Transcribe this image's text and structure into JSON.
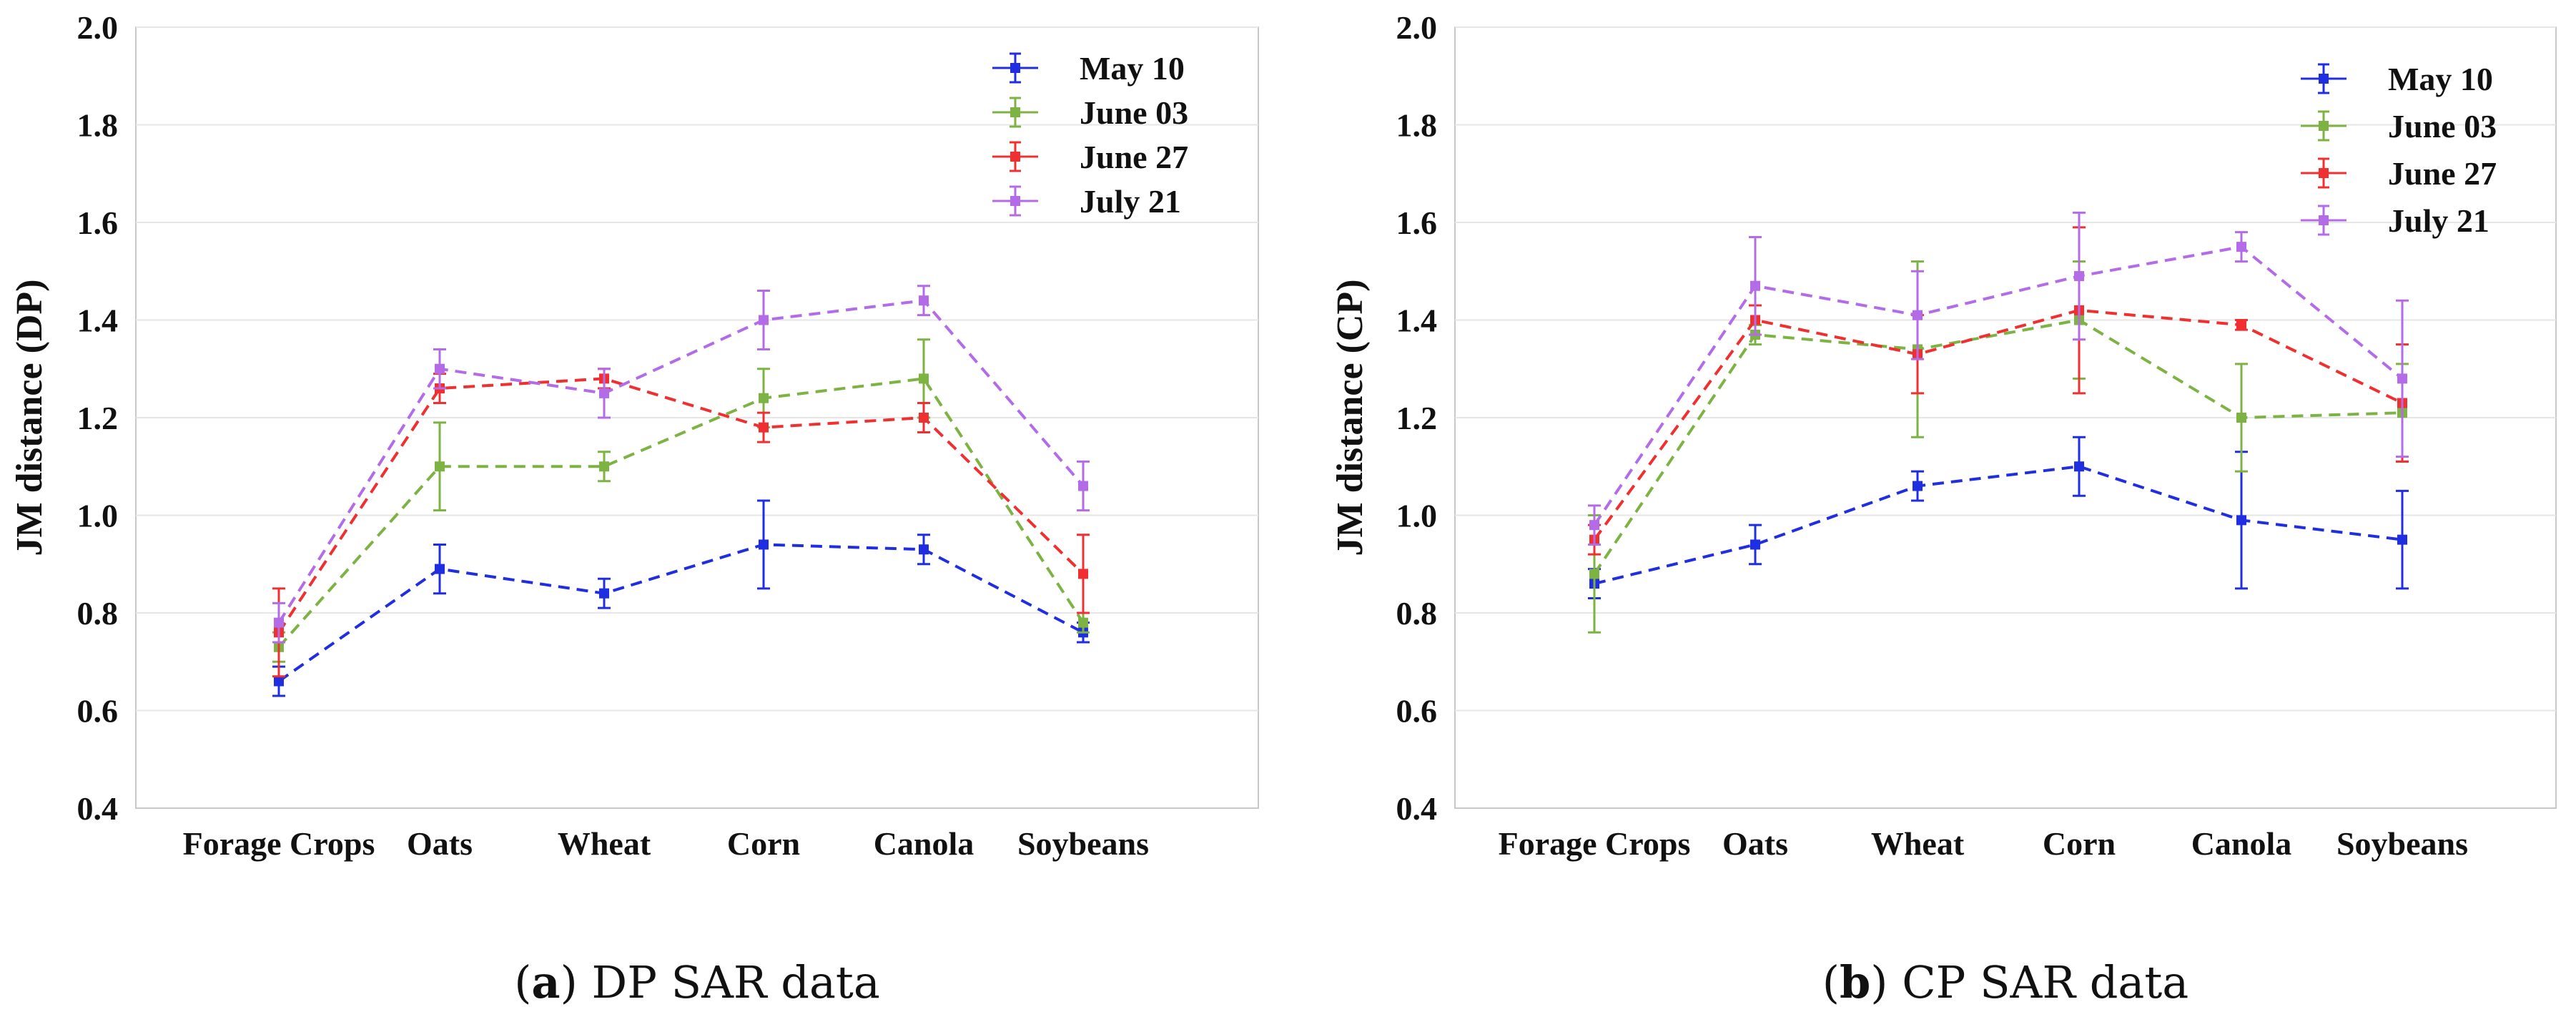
{
  "chart_data": [
    {
      "type": "line",
      "title": "",
      "caption_letter": "a",
      "caption_text": "DP SAR data",
      "xlabel": "",
      "ylabel": "JM distance (DP)",
      "ylim": [
        0.4,
        2.0
      ],
      "yticks": [
        "0.4",
        "0.6",
        "0.8",
        "1.0",
        "1.2",
        "1.4",
        "1.6",
        "1.8",
        "2.0"
      ],
      "grid": true,
      "legend_position": "top-right",
      "categories": [
        "Forage Crops",
        "Oats",
        "Wheat",
        "Corn",
        "Canola",
        "Soybeans"
      ],
      "series": [
        {
          "name": "May 10",
          "color": "#1f2ee0",
          "values": [
            0.66,
            0.89,
            0.84,
            0.94,
            0.93,
            0.76
          ],
          "errors": [
            0.03,
            0.05,
            0.03,
            0.09,
            0.03,
            0.02
          ]
        },
        {
          "name": "June 03",
          "color": "#7cb342",
          "values": [
            0.73,
            1.1,
            1.1,
            1.24,
            1.28,
            0.78
          ],
          "errors": [
            0.03,
            0.09,
            0.03,
            0.06,
            0.08,
            0.02
          ]
        },
        {
          "name": "June 27",
          "color": "#f03030",
          "values": [
            0.76,
            1.26,
            1.28,
            1.18,
            1.2,
            0.88
          ],
          "errors": [
            0.09,
            0.03,
            0.02,
            0.03,
            0.03,
            0.08
          ]
        },
        {
          "name": "July 21",
          "color": "#b36be8",
          "values": [
            0.78,
            1.3,
            1.25,
            1.4,
            1.44,
            1.06
          ],
          "errors": [
            0.04,
            0.04,
            0.05,
            0.06,
            0.03,
            0.05
          ]
        }
      ]
    },
    {
      "type": "line",
      "title": "",
      "caption_letter": "b",
      "caption_text": "CP SAR data",
      "xlabel": "",
      "ylabel": "JM distance (CP)",
      "ylim": [
        0.4,
        2.0
      ],
      "yticks": [
        "0.4",
        "0.6",
        "0.8",
        "1.0",
        "1.2",
        "1.4",
        "1.6",
        "1.8",
        "2.0"
      ],
      "grid": true,
      "legend_position": "top-right",
      "categories": [
        "Forage Crops",
        "Oats",
        "Wheat",
        "Corn",
        "Canola",
        "Soybeans"
      ],
      "series": [
        {
          "name": "May 10",
          "color": "#1f2ee0",
          "values": [
            0.86,
            0.94,
            1.06,
            1.1,
            0.99,
            0.95
          ],
          "errors": [
            0.03,
            0.04,
            0.03,
            0.06,
            0.14,
            0.1
          ]
        },
        {
          "name": "June 03",
          "color": "#7cb342",
          "values": [
            0.88,
            1.37,
            1.34,
            1.4,
            1.2,
            1.21
          ],
          "errors": [
            0.12,
            0.02,
            0.18,
            0.12,
            0.11,
            0.1
          ]
        },
        {
          "name": "June 27",
          "color": "#f03030",
          "values": [
            0.95,
            1.4,
            1.33,
            1.42,
            1.39,
            1.23
          ],
          "errors": [
            0.03,
            0.03,
            0.08,
            0.17,
            0.01,
            0.12
          ]
        },
        {
          "name": "July 21",
          "color": "#b36be8",
          "values": [
            0.98,
            1.47,
            1.41,
            1.49,
            1.55,
            1.28
          ],
          "errors": [
            0.04,
            0.1,
            0.09,
            0.13,
            0.03,
            0.16
          ]
        }
      ]
    }
  ]
}
